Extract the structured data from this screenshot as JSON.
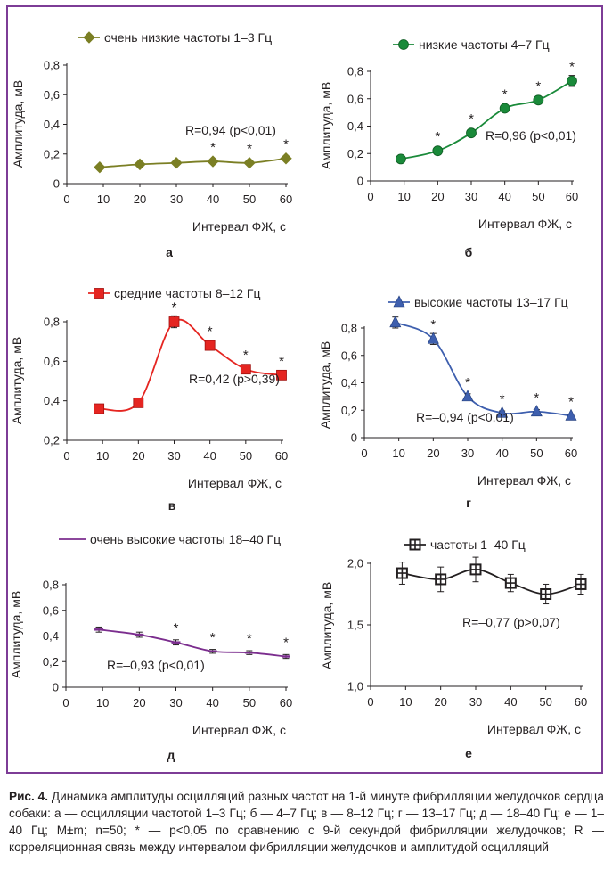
{
  "caption": {
    "label": "Рис. 4.",
    "text": "Динамика амплитуды осцилляций разных частот на 1-й минуте фибрилляции желудочков сердца собаки: а — осцилляции частотой 1–3 Гц; б — 4–7 Гц; в — 8–12 Гц; г — 13–17 Гц; д — 18–40 Гц; е — 1–40 Гц; M±m; n=50; * — p<0,05 по сравнению с 9-й секундой фибрилляции желудочков; R — корреляционная связь между интервалом фибрилляции желудочков и амплитудой осцилляций"
  },
  "chart_data": [
    {
      "panel_label": "а",
      "type": "line",
      "x": [
        9,
        20,
        30,
        40,
        50,
        60
      ],
      "series": [
        {
          "name": "очень низкие частоты 1–3 Гц",
          "values": [
            0.11,
            0.13,
            0.14,
            0.15,
            0.14,
            0.17
          ],
          "errors": [
            0.01,
            0.01,
            0.01,
            0.01,
            0.01,
            0.01
          ],
          "significant": [
            false,
            false,
            false,
            true,
            true,
            true
          ]
        }
      ],
      "marker": "diamond",
      "color": "#7b7f24",
      "xlabel": "Интервал ФЖ, с",
      "ylabel": "Амплитуда, мВ",
      "xlim": [
        0,
        60
      ],
      "xticks": [
        "0",
        "10",
        "20",
        "30",
        "40",
        "50",
        "60"
      ],
      "ylim": [
        0,
        0.8
      ],
      "yticks": [
        "0",
        "0,2",
        "0,4",
        "0,6",
        "0,8"
      ],
      "annotation": "R=0,94 (p<0,01)",
      "legend_position": "top",
      "grid": false
    },
    {
      "panel_label": "б",
      "type": "line",
      "x": [
        9,
        20,
        30,
        40,
        50,
        60
      ],
      "series": [
        {
          "name": "низкие частоты 4–7 Гц",
          "values": [
            0.16,
            0.22,
            0.35,
            0.53,
            0.59,
            0.73
          ],
          "errors": [
            0.01,
            0.01,
            0.015,
            0.02,
            0.02,
            0.04
          ],
          "significant": [
            false,
            true,
            true,
            true,
            true,
            true
          ]
        }
      ],
      "marker": "circle",
      "color": "#1a8a3a",
      "xlabel": "Интервал ФЖ, с",
      "ylabel": "Амплитуда, мВ",
      "xlim": [
        0,
        60
      ],
      "xticks": [
        "0",
        "10",
        "20",
        "30",
        "40",
        "50",
        "60"
      ],
      "ylim": [
        0,
        0.8
      ],
      "yticks": [
        "0",
        "0,2",
        "0,4",
        "0,6",
        "0,8"
      ],
      "annotation": "R=0,96 (p<0,01)",
      "legend_position": "top",
      "grid": false
    },
    {
      "panel_label": "в",
      "type": "line",
      "x": [
        9,
        20,
        30,
        40,
        50,
        60
      ],
      "series": [
        {
          "name": "средние частоты 8–12 Гц",
          "values": [
            0.36,
            0.39,
            0.8,
            0.68,
            0.56,
            0.53
          ],
          "errors": [
            0.01,
            0.01,
            0.03,
            0.02,
            0.02,
            0.02
          ],
          "significant": [
            false,
            false,
            true,
            true,
            true,
            true
          ]
        }
      ],
      "marker": "square",
      "color": "#e52521",
      "xlabel": "Интервал ФЖ, с",
      "ylabel": "Амплитуда, мВ",
      "xlim": [
        0,
        60
      ],
      "xticks": [
        "0",
        "10",
        "20",
        "30",
        "40",
        "50",
        "60"
      ],
      "ylim": [
        0.2,
        0.8
      ],
      "yticks": [
        "0,2",
        "0,4",
        "0,6",
        "0,8"
      ],
      "annotation": "R=0,42  (p>0,39)",
      "legend_position": "top",
      "grid": false
    },
    {
      "panel_label": "г",
      "type": "line",
      "x": [
        9,
        20,
        30,
        40,
        50,
        60
      ],
      "series": [
        {
          "name": "высокие частоты 13–17 Гц",
          "values": [
            0.84,
            0.72,
            0.3,
            0.18,
            0.19,
            0.16
          ],
          "errors": [
            0.04,
            0.04,
            0.02,
            0.015,
            0.015,
            0.01
          ],
          "significant": [
            false,
            true,
            true,
            true,
            true,
            true
          ]
        }
      ],
      "marker": "triangle",
      "color": "#3e5fae",
      "xlabel": "Интервал ФЖ, с",
      "ylabel": "Амплитуда, мВ",
      "xlim": [
        0,
        60
      ],
      "xticks": [
        "0",
        "10",
        "20",
        "30",
        "40",
        "50",
        "60"
      ],
      "ylim": [
        0,
        0.8
      ],
      "yticks": [
        "0",
        "0,2",
        "0,4",
        "0,6",
        "0,8"
      ],
      "annotation": "R=–0,94 (p<0,01)",
      "legend_position": "top",
      "grid": false
    },
    {
      "panel_label": "д",
      "type": "line",
      "x": [
        9,
        20,
        30,
        40,
        50,
        60
      ],
      "series": [
        {
          "name": "очень высокие частоты 18–40 Гц",
          "values": [
            0.45,
            0.41,
            0.35,
            0.28,
            0.27,
            0.24
          ],
          "errors": [
            0.02,
            0.02,
            0.02,
            0.015,
            0.015,
            0.015
          ],
          "significant": [
            false,
            false,
            true,
            true,
            true,
            true
          ]
        }
      ],
      "marker": "dash",
      "color": "#7b2d8e",
      "xlabel": "Интервал ФЖ, с",
      "ylabel": "Амплитуда, мВ",
      "xlim": [
        0,
        60
      ],
      "xticks": [
        "0",
        "10",
        "20",
        "30",
        "40",
        "50",
        "60"
      ],
      "ylim": [
        0,
        0.8
      ],
      "yticks": [
        "0",
        "0,2",
        "0,4",
        "0,6",
        "0,8"
      ],
      "annotation": "R=–0,93 (p<0,01)",
      "legend_position": "top",
      "grid": false
    },
    {
      "panel_label": "е",
      "type": "line",
      "x": [
        9,
        20,
        30,
        40,
        50,
        60
      ],
      "series": [
        {
          "name": "частоты 1–40 Гц",
          "values": [
            1.92,
            1.87,
            1.95,
            1.84,
            1.75,
            1.83
          ],
          "errors": [
            0.09,
            0.1,
            0.1,
            0.07,
            0.08,
            0.08
          ],
          "significant": [
            false,
            false,
            false,
            false,
            false,
            false
          ]
        }
      ],
      "marker": "cross-square",
      "color": "#231f20",
      "xlabel": "Интервал ФЖ, с",
      "ylabel": "Амплитуда, мВ",
      "xlim": [
        0,
        60
      ],
      "xticks": [
        "0",
        "10",
        "20",
        "30",
        "40",
        "50",
        "60"
      ],
      "ylim": [
        1.0,
        2.0
      ],
      "yticks": [
        "1,0",
        "1,5",
        "2,0"
      ],
      "annotation": "R=–0,77  (p>0,07)",
      "legend_position": "top",
      "grid": false
    }
  ]
}
